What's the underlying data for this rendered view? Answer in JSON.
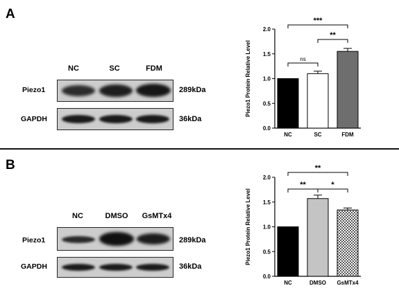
{
  "figure": {
    "panels": [
      {
        "letter": "A",
        "lanes": [
          "NC",
          "SC",
          "FDM"
        ],
        "rows": [
          {
            "protein": "Piezo1",
            "kda": "289kDa"
          },
          {
            "protein": "GAPDH",
            "kda": "36kDa"
          }
        ]
      },
      {
        "letter": "B",
        "lanes": [
          "NC",
          "DMSO",
          "GsMTx4"
        ],
        "rows": [
          {
            "protein": "Piezo1",
            "kda": "289kDa"
          },
          {
            "protein": "GAPDH",
            "kda": "36kDa"
          }
        ]
      }
    ]
  },
  "chart_data": [
    {
      "type": "bar",
      "categories": [
        "NC",
        "SC",
        "FDM"
      ],
      "values": [
        1.0,
        1.1,
        1.55
      ],
      "errors": [
        0.0,
        0.05,
        0.06
      ],
      "bar_colors": [
        "#000000",
        "#ffffff",
        "#6e6e6e"
      ],
      "bar_patterns": [
        "solid",
        "solid",
        "solid"
      ],
      "ylabel": "Piezo1 Protein Relative Level",
      "ylim": [
        0,
        2.0
      ],
      "yticks": [
        "0.0",
        "0.5",
        "1.0",
        "1.5",
        "2.0"
      ],
      "significance": [
        {
          "from": 0,
          "to": 1,
          "label": "ns"
        },
        {
          "from": 1,
          "to": 2,
          "label": "**"
        },
        {
          "from": 0,
          "to": 2,
          "label": "***"
        }
      ]
    },
    {
      "type": "bar",
      "categories": [
        "NC",
        "DMSO",
        "GsMTx4"
      ],
      "values": [
        1.0,
        1.57,
        1.34
      ],
      "errors": [
        0.0,
        0.07,
        0.04
      ],
      "bar_colors": [
        "#000000",
        "#c4c4c4",
        "#d8d8d8"
      ],
      "bar_patterns": [
        "solid",
        "solid",
        "checker"
      ],
      "ylabel": "Piezo1 Protein Relative Level",
      "ylim": [
        0,
        2.0
      ],
      "yticks": [
        "0.0",
        "0.5",
        "1.0",
        "1.5",
        "2.0"
      ],
      "significance": [
        {
          "from": 0,
          "to": 1,
          "label": "**"
        },
        {
          "from": 1,
          "to": 2,
          "label": "*"
        },
        {
          "from": 0,
          "to": 2,
          "label": "**"
        }
      ]
    }
  ]
}
